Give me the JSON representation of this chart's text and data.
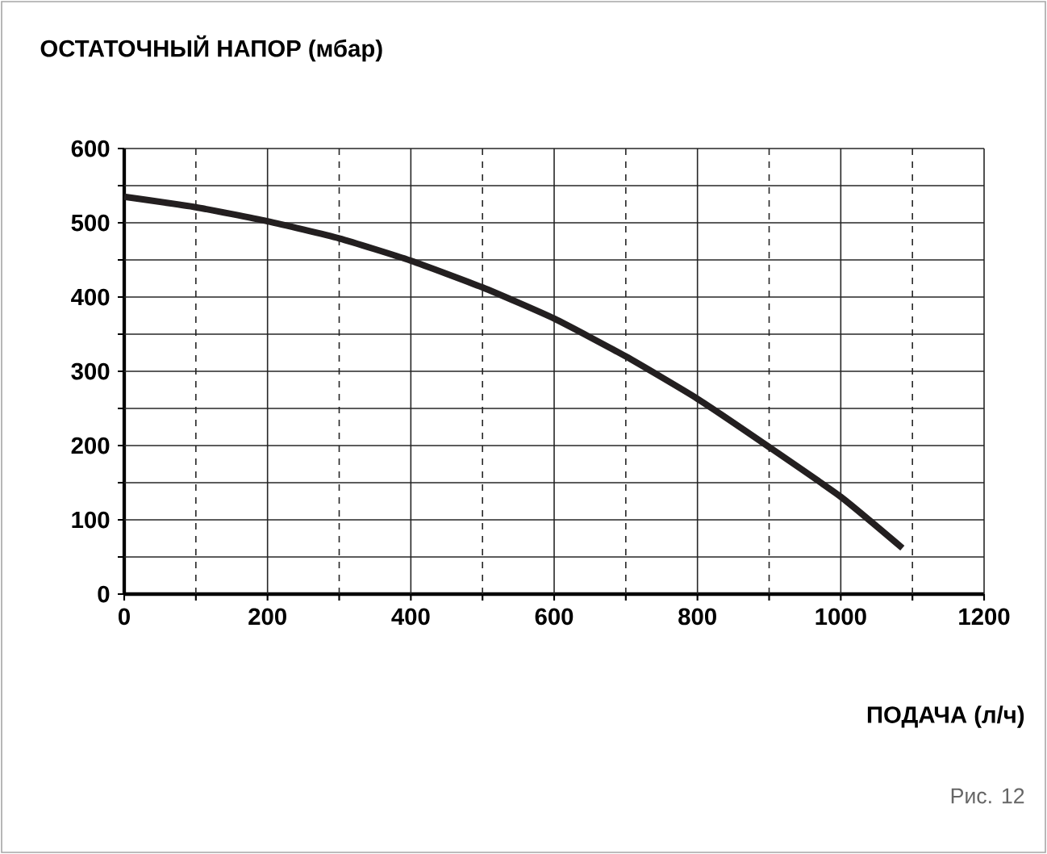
{
  "chart_data": {
    "type": "line",
    "title": "ОСТАТОЧНЫЙ НАПОР (мбар)",
    "xlabel": "ПОДАЧА (л/ч)",
    "annotations": [
      "Рис. 12"
    ],
    "xlim": [
      0,
      1200
    ],
    "ylim": [
      0,
      600
    ],
    "xticks": [
      0,
      {
        "value": 100,
        "label": null
      },
      200,
      {
        "value": 300,
        "label": null
      },
      400,
      {
        "value": 500,
        "label": null
      },
      600,
      {
        "value": 700,
        "label": null
      },
      800,
      {
        "value": 900,
        "label": null
      },
      1000,
      {
        "value": 1100,
        "label": null
      },
      1200
    ],
    "yticks": [
      0,
      {
        "value": 50,
        "label": null
      },
      100,
      {
        "value": 150,
        "label": null
      },
      200,
      {
        "value": 250,
        "label": null
      },
      300,
      {
        "value": 350,
        "label": null
      },
      400,
      {
        "value": 450,
        "label": null
      },
      500,
      {
        "value": 550,
        "label": null
      },
      600
    ],
    "grid": true,
    "series": [
      {
        "color": "#231f20",
        "x": [
          0,
          100,
          200,
          300,
          400,
          500,
          600,
          700,
          800,
          900,
          1000,
          1086
        ],
        "values": [
          535,
          521,
          502,
          479,
          449,
          413,
          371,
          320,
          263,
          198,
          131,
          62
        ]
      }
    ]
  }
}
